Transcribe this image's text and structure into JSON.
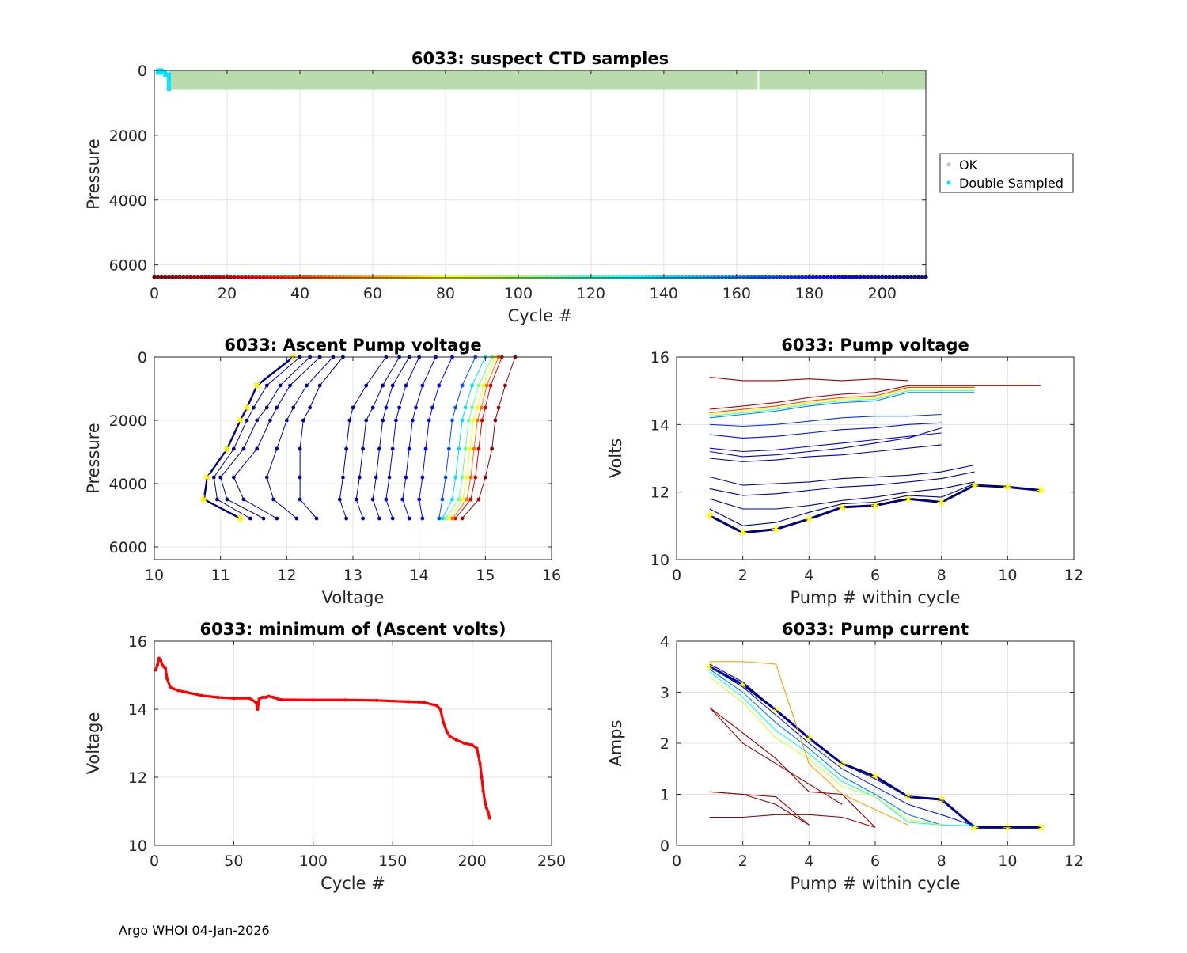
{
  "footer": "Argo WHOI 04-Jan-2026",
  "legend": {
    "ok": "OK",
    "double_sampled": "Double Sampled",
    "ok_color": "#c0c0c0",
    "double_sampled_color": "#00e5ff"
  },
  "chart_data": [
    {
      "id": "ctd",
      "type": "scatter",
      "title": "6033: suspect CTD samples",
      "xlabel": "Cycle #",
      "ylabel": "Pressure",
      "xlim": [
        0,
        212
      ],
      "ylim": [
        6400,
        0
      ],
      "xticks": [
        0,
        20,
        40,
        60,
        80,
        100,
        120,
        140,
        160,
        180,
        200
      ],
      "yticks": [
        0,
        2000,
        4000,
        6000
      ],
      "ok_band": {
        "cycles": [
          4,
          212
        ],
        "pressure": [
          0,
          600
        ],
        "gap_cycle": 166,
        "color": "#b9dbae"
      },
      "double_sampled": [
        {
          "cycle": 1,
          "p": 0
        },
        {
          "cycle": 2,
          "p": 0
        },
        {
          "cycle": 3,
          "p": 60
        },
        {
          "cycle": 4,
          "p": 120
        },
        {
          "cycle": 4,
          "p": 300
        },
        {
          "cycle": 4,
          "p": 500
        }
      ],
      "cycle_marker_pressure": 6380
    },
    {
      "id": "ascent",
      "type": "line",
      "title": "6033: Ascent Pump voltage",
      "xlabel": "Voltage",
      "ylabel": "Pressure",
      "xlim": [
        10,
        16
      ],
      "ylim": [
        6400,
        0
      ],
      "xticks": [
        10,
        11,
        12,
        13,
        14,
        15,
        16
      ],
      "yticks": [
        0,
        2000,
        4000,
        6000
      ],
      "pressures": [
        0,
        900,
        1600,
        2000,
        2900,
        3800,
        4500,
        5100
      ],
      "series": [
        {
          "cycle": 211,
          "volts": [
            12.1,
            11.55,
            11.4,
            11.3,
            11.1,
            10.8,
            10.75,
            11.3
          ],
          "highlight": true
        },
        {
          "cycle": 210,
          "volts": [
            12.2,
            11.7,
            11.5,
            11.4,
            11.2,
            10.9,
            10.95,
            11.45
          ]
        },
        {
          "cycle": 209,
          "volts": [
            12.35,
            11.9,
            11.7,
            11.55,
            11.35,
            11.0,
            11.1,
            11.65
          ]
        },
        {
          "cycle": 208,
          "volts": [
            12.5,
            12.05,
            11.85,
            11.75,
            11.55,
            11.2,
            11.35,
            11.85
          ]
        },
        {
          "cycle": 207,
          "volts": [
            12.7,
            12.3,
            12.1,
            12.0,
            11.85,
            11.7,
            11.8,
            12.15
          ]
        },
        {
          "cycle": 206,
          "volts": [
            12.85,
            12.5,
            12.35,
            12.25,
            12.2,
            12.2,
            12.2,
            12.45
          ]
        },
        {
          "cycle": 205,
          "volts": [
            13.5,
            13.2,
            13.0,
            12.95,
            12.9,
            12.85,
            12.8,
            12.9
          ]
        },
        {
          "cycle": 203,
          "volts": [
            13.7,
            13.45,
            13.3,
            13.2,
            13.15,
            13.1,
            13.05,
            13.15
          ]
        },
        {
          "cycle": 200,
          "volts": [
            13.85,
            13.6,
            13.5,
            13.45,
            13.4,
            13.35,
            13.3,
            13.4
          ]
        },
        {
          "cycle": 195,
          "volts": [
            14.0,
            13.8,
            13.7,
            13.65,
            13.6,
            13.55,
            13.5,
            13.6
          ]
        },
        {
          "cycle": 190,
          "volts": [
            14.25,
            14.05,
            13.95,
            13.9,
            13.85,
            13.8,
            13.75,
            13.85
          ]
        },
        {
          "cycle": 185,
          "volts": [
            14.5,
            14.3,
            14.2,
            14.15,
            14.1,
            14.05,
            14.0,
            14.05
          ]
        },
        {
          "cycle": 170,
          "volts": [
            14.85,
            14.65,
            14.55,
            14.5,
            14.45,
            14.4,
            14.35,
            14.3
          ]
        },
        {
          "cycle": 140,
          "volts": [
            15.0,
            14.8,
            14.7,
            14.65,
            14.6,
            14.55,
            14.5,
            14.35
          ]
        },
        {
          "cycle": 110,
          "volts": [
            15.1,
            14.9,
            14.8,
            14.75,
            14.7,
            14.65,
            14.6,
            14.4
          ]
        },
        {
          "cycle": 80,
          "volts": [
            15.15,
            14.97,
            14.88,
            14.82,
            14.77,
            14.72,
            14.66,
            14.45
          ]
        },
        {
          "cycle": 50,
          "volts": [
            15.2,
            15.02,
            14.94,
            14.88,
            14.83,
            14.78,
            14.72,
            14.5
          ]
        },
        {
          "cycle": 20,
          "volts": [
            15.25,
            15.08,
            15.0,
            14.95,
            14.9,
            14.85,
            14.78,
            14.55
          ]
        },
        {
          "cycle": 5,
          "volts": [
            15.45,
            15.3,
            15.2,
            15.15,
            15.1,
            15.0,
            14.9,
            14.65
          ]
        }
      ]
    },
    {
      "id": "volts",
      "type": "line",
      "title": "6033: Pump voltage",
      "xlabel": "Pump # within cycle",
      "ylabel": "Volts",
      "xlim": [
        0,
        12
      ],
      "ylim": [
        10,
        16
      ],
      "xticks": [
        0,
        2,
        4,
        6,
        8,
        10,
        12
      ],
      "yticks": [
        10,
        12,
        14,
        16
      ],
      "series": [
        {
          "cycle": 5,
          "x": [
            1,
            2,
            3,
            4,
            5,
            6,
            7
          ],
          "y": [
            15.4,
            15.3,
            15.3,
            15.35,
            15.3,
            15.35,
            15.3
          ]
        },
        {
          "cycle": 10,
          "x": [
            1,
            2,
            3,
            4,
            5,
            6,
            7,
            8,
            9,
            10,
            11
          ],
          "y": [
            14.45,
            14.55,
            14.65,
            14.8,
            14.9,
            14.95,
            15.15,
            15.15,
            15.15,
            15.15,
            15.15
          ]
        },
        {
          "cycle": 40,
          "x": [
            1,
            2,
            3,
            4,
            5,
            6,
            7,
            8,
            9
          ],
          "y": [
            14.35,
            14.45,
            14.55,
            14.7,
            14.8,
            14.85,
            15.1,
            15.1,
            15.1
          ]
        },
        {
          "cycle": 80,
          "x": [
            1,
            2,
            3,
            4,
            5,
            6,
            7,
            8,
            9
          ],
          "y": [
            14.3,
            14.4,
            14.5,
            14.65,
            14.75,
            14.8,
            15.05,
            15.05,
            15.05
          ]
        },
        {
          "cycle": 120,
          "x": [
            1,
            2,
            3,
            4,
            5,
            6,
            7,
            8,
            9
          ],
          "y": [
            14.25,
            14.35,
            14.45,
            14.6,
            14.7,
            14.75,
            15.0,
            15.0,
            15.0
          ]
        },
        {
          "cycle": 160,
          "x": [
            1,
            2,
            3,
            4,
            5,
            6,
            7,
            8,
            9
          ],
          "y": [
            14.2,
            14.3,
            14.4,
            14.55,
            14.65,
            14.7,
            14.95,
            14.95,
            14.95
          ]
        },
        {
          "cycle": 175,
          "x": [
            1,
            2,
            3,
            4,
            5,
            6,
            7,
            8
          ],
          "y": [
            14.0,
            13.95,
            14.0,
            14.1,
            14.2,
            14.25,
            14.25,
            14.3
          ]
        },
        {
          "cycle": 182,
          "x": [
            1,
            2,
            3,
            4,
            5,
            6,
            7,
            8
          ],
          "y": [
            13.7,
            13.6,
            13.65,
            13.75,
            13.85,
            13.9,
            14.0,
            14.05
          ]
        },
        {
          "cycle": 188,
          "x": [
            1,
            2,
            3,
            4,
            5,
            6,
            7,
            8
          ],
          "y": [
            13.3,
            13.2,
            13.25,
            13.35,
            13.45,
            13.55,
            13.65,
            13.75
          ]
        },
        {
          "cycle": 195,
          "x": [
            1,
            2,
            3,
            4,
            5,
            6,
            7,
            8
          ],
          "y": [
            13.2,
            13.05,
            13.1,
            13.2,
            13.3,
            13.45,
            13.6,
            13.9
          ]
        },
        {
          "cycle": 200,
          "x": [
            1,
            2,
            3,
            4,
            5,
            6,
            7,
            8
          ],
          "y": [
            13.0,
            12.9,
            12.95,
            13.05,
            13.1,
            13.2,
            13.3,
            13.4
          ]
        },
        {
          "cycle": 204,
          "x": [
            1,
            2,
            3,
            4,
            5,
            6,
            7,
            8,
            9
          ],
          "y": [
            12.45,
            12.2,
            12.25,
            12.3,
            12.4,
            12.45,
            12.5,
            12.6,
            12.8
          ]
        },
        {
          "cycle": 206,
          "x": [
            1,
            2,
            3,
            4,
            5,
            6,
            7,
            8,
            9
          ],
          "y": [
            12.1,
            11.9,
            11.95,
            12.05,
            12.15,
            12.2,
            12.3,
            12.4,
            12.6
          ]
        },
        {
          "cycle": 208,
          "x": [
            1,
            2,
            3,
            4,
            5,
            6,
            7,
            8,
            9
          ],
          "y": [
            11.8,
            11.5,
            11.5,
            11.6,
            11.75,
            11.85,
            12.0,
            12.1,
            12.3
          ]
        },
        {
          "cycle": 210,
          "x": [
            1,
            2,
            3,
            4,
            5,
            6,
            7,
            8,
            9
          ],
          "y": [
            11.5,
            11.0,
            11.1,
            11.4,
            11.65,
            11.7,
            11.9,
            11.85,
            12.25
          ]
        },
        {
          "cycle": 211,
          "x": [
            1,
            2,
            3,
            4,
            5,
            6,
            7,
            8,
            9,
            10,
            11
          ],
          "y": [
            11.3,
            10.8,
            10.9,
            11.2,
            11.55,
            11.6,
            11.8,
            11.7,
            12.2,
            12.15,
            12.05
          ],
          "highlight": true
        }
      ]
    },
    {
      "id": "minvolts",
      "type": "line",
      "title": "6033: minimum of (Ascent volts)",
      "xlabel": "Cycle #",
      "ylabel": "Voltage",
      "xlim": [
        0,
        250
      ],
      "ylim": [
        10,
        16
      ],
      "xticks": [
        0,
        50,
        100,
        150,
        200,
        250
      ],
      "yticks": [
        10,
        12,
        14,
        16
      ],
      "x": [
        1,
        2,
        3,
        4,
        5,
        6,
        7,
        8,
        10,
        12,
        15,
        20,
        30,
        40,
        50,
        60,
        64,
        65,
        66,
        68,
        70,
        72,
        75,
        78,
        80,
        100,
        120,
        140,
        160,
        170,
        178,
        180,
        182,
        184,
        186,
        190,
        195,
        200,
        203,
        205,
        206,
        207,
        208,
        209,
        210,
        211
      ],
      "y": [
        15.15,
        15.3,
        15.5,
        15.45,
        15.3,
        15.25,
        15.2,
        14.9,
        14.65,
        14.6,
        14.55,
        14.5,
        14.4,
        14.35,
        14.32,
        14.32,
        14.2,
        14.0,
        14.3,
        14.35,
        14.35,
        14.38,
        14.35,
        14.3,
        14.28,
        14.27,
        14.27,
        14.26,
        14.22,
        14.2,
        14.1,
        14.0,
        13.6,
        13.35,
        13.2,
        13.1,
        13.0,
        12.95,
        12.85,
        12.4,
        12.0,
        11.6,
        11.3,
        11.1,
        11.0,
        10.8
      ]
    },
    {
      "id": "current",
      "type": "line",
      "title": "6033: Pump current",
      "xlabel": "Pump # within cycle",
      "ylabel": "Amps",
      "xlim": [
        0,
        12
      ],
      "ylim": [
        0,
        4
      ],
      "xticks": [
        0,
        2,
        4,
        6,
        8,
        10,
        12
      ],
      "yticks": [
        0,
        1,
        2,
        3,
        4
      ],
      "series": [
        {
          "cycle": 3,
          "x": [
            1,
            2,
            3,
            4,
            5,
            6
          ],
          "y": [
            2.7,
            2.2,
            1.7,
            1.05,
            1.0,
            0.35
          ]
        },
        {
          "cycle": 4,
          "x": [
            1,
            2,
            3,
            4
          ],
          "y": [
            1.05,
            1.0,
            0.8,
            0.4
          ]
        },
        {
          "cycle": 5,
          "x": [
            1,
            2,
            3,
            4,
            5,
            6
          ],
          "y": [
            0.55,
            0.55,
            0.6,
            0.6,
            0.55,
            0.35
          ]
        },
        {
          "cycle": 6,
          "x": [
            1,
            2,
            3,
            4
          ],
          "y": [
            1.05,
            1.0,
            0.95,
            0.4
          ]
        },
        {
          "cycle": 8,
          "x": [
            1,
            2,
            3,
            4,
            5
          ],
          "y": [
            2.7,
            2.0,
            1.6,
            1.2,
            0.8
          ]
        },
        {
          "cycle": 60,
          "x": [
            1,
            2,
            3,
            4,
            5,
            6,
            7
          ],
          "y": [
            3.6,
            3.6,
            3.55,
            1.6,
            1.0,
            0.7,
            0.4
          ]
        },
        {
          "cycle": 90,
          "x": [
            1,
            2,
            3,
            4,
            5,
            6,
            7,
            8
          ],
          "y": [
            3.3,
            2.8,
            2.1,
            1.7,
            1.15,
            0.95,
            0.5,
            0.4
          ]
        },
        {
          "cycle": 130,
          "x": [
            1,
            2,
            3,
            4,
            5,
            6,
            7,
            8,
            9
          ],
          "y": [
            3.4,
            2.9,
            2.25,
            1.8,
            1.25,
            0.95,
            0.45,
            0.4,
            0.38
          ]
        },
        {
          "cycle": 160,
          "x": [
            1,
            2,
            3,
            4,
            5,
            6,
            7,
            8,
            9
          ],
          "y": [
            3.45,
            3.0,
            2.4,
            1.9,
            1.35,
            1.0,
            0.6,
            0.4,
            0.38
          ]
        },
        {
          "cycle": 180,
          "x": [
            1,
            2,
            3,
            4,
            5,
            6,
            7,
            8,
            9
          ],
          "y": [
            3.5,
            3.1,
            2.55,
            2.0,
            1.5,
            1.15,
            0.8,
            0.6,
            0.38
          ]
        },
        {
          "cycle": 200,
          "x": [
            1,
            2,
            3,
            4,
            5,
            6,
            7,
            8,
            9,
            10,
            11
          ],
          "y": [
            3.55,
            3.2,
            2.65,
            2.1,
            1.6,
            1.3,
            0.95,
            0.88,
            0.38,
            0.36,
            0.35
          ]
        },
        {
          "cycle": 211,
          "x": [
            1,
            2,
            3,
            4,
            5,
            6,
            7,
            8,
            9,
            10,
            11
          ],
          "y": [
            3.5,
            3.15,
            2.65,
            2.1,
            1.6,
            1.35,
            0.95,
            0.9,
            0.35,
            0.35,
            0.35
          ],
          "highlight": true
        }
      ]
    }
  ]
}
